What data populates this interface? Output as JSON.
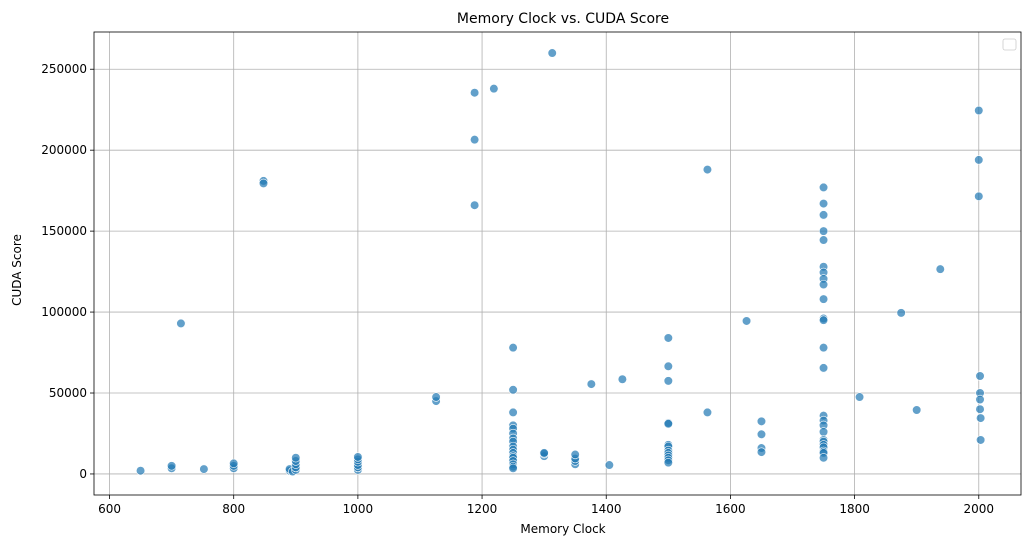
{
  "chart_data": {
    "type": "scatter",
    "title": "Memory Clock vs. CUDA Score",
    "xlabel": "Memory Clock",
    "ylabel": "CUDA Score",
    "xlim": [
      575,
      2068
    ],
    "ylim": [
      -13000,
      273000
    ],
    "xticks": [
      600,
      800,
      1000,
      1200,
      1400,
      1600,
      1800,
      2000
    ],
    "yticks": [
      0,
      50000,
      100000,
      150000,
      200000,
      250000
    ],
    "grid": true,
    "legend": "top-right (empty)",
    "color": "#1f77b4",
    "points": [
      [
        650,
        2000
      ],
      [
        700,
        3500
      ],
      [
        700,
        5000
      ],
      [
        715,
        93000
      ],
      [
        752,
        3000
      ],
      [
        800,
        3500
      ],
      [
        800,
        5000
      ],
      [
        800,
        6500
      ],
      [
        848,
        181000
      ],
      [
        848,
        179500
      ],
      [
        890,
        2000
      ],
      [
        890,
        3000
      ],
      [
        895,
        1500
      ],
      [
        900,
        2500
      ],
      [
        900,
        4000
      ],
      [
        900,
        6000
      ],
      [
        900,
        8000
      ],
      [
        900,
        10000
      ],
      [
        1000,
        2500
      ],
      [
        1000,
        4000
      ],
      [
        1000,
        5500
      ],
      [
        1000,
        7500
      ],
      [
        1000,
        9000
      ],
      [
        1000,
        10500
      ],
      [
        1126,
        45000
      ],
      [
        1126,
        47500
      ],
      [
        1188,
        235500
      ],
      [
        1188,
        206500
      ],
      [
        1188,
        166000
      ],
      [
        1219,
        238000
      ],
      [
        1313,
        260000
      ],
      [
        1250,
        78000
      ],
      [
        1250,
        52000
      ],
      [
        1250,
        38000
      ],
      [
        1250,
        30000
      ],
      [
        1250,
        28000
      ],
      [
        1250,
        25000
      ],
      [
        1250,
        22000
      ],
      [
        1250,
        20000
      ],
      [
        1250,
        17000
      ],
      [
        1250,
        15000
      ],
      [
        1250,
        13000
      ],
      [
        1250,
        11000
      ],
      [
        1250,
        10000
      ],
      [
        1250,
        8000
      ],
      [
        1250,
        6000
      ],
      [
        1250,
        4500
      ],
      [
        1250,
        3500
      ],
      [
        1300,
        11000
      ],
      [
        1300,
        12500
      ],
      [
        1300,
        13000
      ],
      [
        1350,
        6000
      ],
      [
        1350,
        8000
      ],
      [
        1350,
        9500
      ],
      [
        1350,
        12000
      ],
      [
        1376,
        55500
      ],
      [
        1405,
        5500
      ],
      [
        1426,
        58500
      ],
      [
        1500,
        84000
      ],
      [
        1500,
        66500
      ],
      [
        1500,
        57500
      ],
      [
        1500,
        31500
      ],
      [
        1500,
        31000
      ],
      [
        1500,
        18000
      ],
      [
        1500,
        17000
      ],
      [
        1500,
        14500
      ],
      [
        1500,
        13000
      ],
      [
        1500,
        11500
      ],
      [
        1500,
        10000
      ],
      [
        1500,
        8500
      ],
      [
        1500,
        7000
      ],
      [
        1563,
        188000
      ],
      [
        1563,
        38000
      ],
      [
        1626,
        94500
      ],
      [
        1650,
        32500
      ],
      [
        1650,
        24500
      ],
      [
        1650,
        16000
      ],
      [
        1650,
        13500
      ],
      [
        1750,
        177000
      ],
      [
        1750,
        167000
      ],
      [
        1750,
        160000
      ],
      [
        1750,
        150000
      ],
      [
        1750,
        144500
      ],
      [
        1750,
        128000
      ],
      [
        1750,
        124500
      ],
      [
        1750,
        120500
      ],
      [
        1750,
        117000
      ],
      [
        1750,
        108000
      ],
      [
        1750,
        96000
      ],
      [
        1750,
        95000
      ],
      [
        1750,
        78000
      ],
      [
        1750,
        65500
      ],
      [
        1750,
        36000
      ],
      [
        1750,
        33000
      ],
      [
        1750,
        30000
      ],
      [
        1750,
        26000
      ],
      [
        1750,
        21000
      ],
      [
        1750,
        20000
      ],
      [
        1750,
        18000
      ],
      [
        1750,
        16500
      ],
      [
        1750,
        14000
      ],
      [
        1750,
        13000
      ],
      [
        1750,
        10000
      ],
      [
        1808,
        47500
      ],
      [
        1875,
        99500
      ],
      [
        1900,
        39500
      ],
      [
        1938,
        126500
      ],
      [
        2000,
        224500
      ],
      [
        2000,
        194000
      ],
      [
        2000,
        171500
      ],
      [
        2002,
        60500
      ],
      [
        2002,
        50000
      ],
      [
        2002,
        46000
      ],
      [
        2002,
        40000
      ],
      [
        2003,
        34500
      ],
      [
        2003,
        21000
      ]
    ]
  }
}
